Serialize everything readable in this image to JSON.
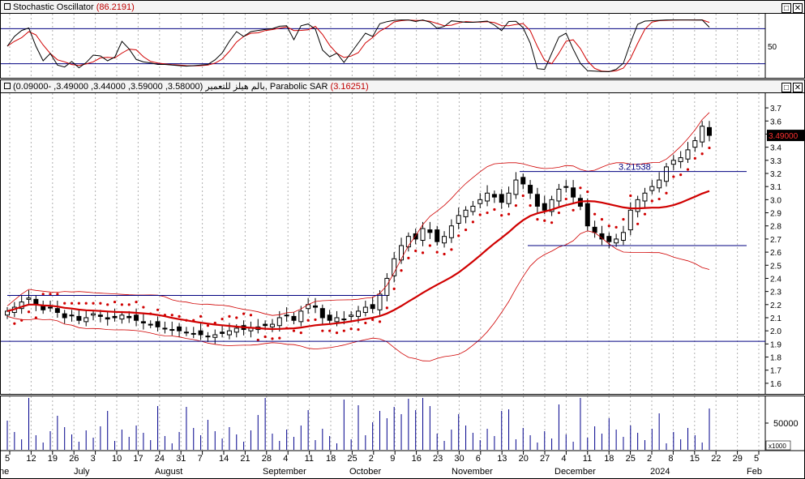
{
  "stoch_panel": {
    "title": "Stochastic Oscillator",
    "value": "(86.2191)",
    "axis_labels": [
      "50"
    ]
  },
  "price_panel": {
    "title": "بالم هيلز للتعمير",
    "ohlc": "(3.58000, 3.59000, 3.44000, 3.49000, -0.09000),",
    "indicator": "Parabolic SAR",
    "indicator_value": "(3.16251)",
    "last_price": "3.49000",
    "resistance_label": "3.21538"
  },
  "volume_panel": {
    "axis_label": "50000",
    "unit": "x1000"
  },
  "buttons": {
    "restore": "□",
    "close": "✕"
  },
  "colors": {
    "up": "#ffffff",
    "down": "#000000",
    "sar": "#d00000",
    "band": "#d00000",
    "ma": "#d00000",
    "hline": "#000080",
    "volume": "#00008b"
  },
  "chart_data": {
    "type": "candlestick",
    "x_dates": [
      "5",
      "12",
      "19",
      "26",
      "3",
      "10",
      "17",
      "24",
      "31",
      "7",
      "14",
      "21",
      "28",
      "4",
      "11",
      "18",
      "25",
      "2",
      "9",
      "16",
      "23",
      "30",
      "6",
      "13",
      "20",
      "27",
      "4",
      "11",
      "18",
      "25",
      "2",
      "8",
      "15",
      "22",
      "29",
      "5"
    ],
    "x_months": [
      "ne",
      "July",
      "August",
      "September",
      "October",
      "November",
      "December",
      "2024",
      "Feb"
    ],
    "ylim": [
      1.55,
      3.75
    ],
    "yticks": [
      1.6,
      1.7,
      1.8,
      1.9,
      2.0,
      2.1,
      2.2,
      2.3,
      2.4,
      2.5,
      2.6,
      2.7,
      2.8,
      2.9,
      3.0,
      3.1,
      3.2,
      3.3,
      3.4,
      3.5,
      3.6,
      3.7
    ],
    "horizontal_lines": [
      2.27,
      3.215,
      2.65,
      1.92
    ],
    "stoch_levels": [
      80,
      20
    ],
    "close_series": [
      2.15,
      2.18,
      2.22,
      2.25,
      2.2,
      2.16,
      2.18,
      2.14,
      2.1,
      2.12,
      2.08,
      2.1,
      2.13,
      2.11,
      2.09,
      2.1,
      2.12,
      2.1,
      2.08,
      2.06,
      2.05,
      2.03,
      2.02,
      2.01,
      2.0,
      1.99,
      1.98,
      1.97,
      1.96,
      1.97,
      1.98,
      2.0,
      2.02,
      2.01,
      2.02,
      2.03,
      2.04,
      2.05,
      2.1,
      2.12,
      2.08,
      2.15,
      2.2,
      2.18,
      2.1,
      2.08,
      2.1,
      2.09,
      2.12,
      2.15,
      2.18,
      2.17,
      2.28,
      2.4,
      2.55,
      2.65,
      2.72,
      2.7,
      2.78,
      2.75,
      2.68,
      2.72,
      2.8,
      2.88,
      2.92,
      2.95,
      3.0,
      3.05,
      3.02,
      2.98,
      3.05,
      3.15,
      3.12,
      3.05,
      2.95,
      2.92,
      3.0,
      3.08,
      3.1,
      3.02,
      2.95,
      2.8,
      2.75,
      2.7,
      2.68,
      2.7,
      2.75,
      2.92,
      3.0,
      3.05,
      3.1,
      3.15,
      3.25,
      3.3,
      3.32,
      3.38,
      3.45,
      3.56,
      3.49
    ]
  }
}
